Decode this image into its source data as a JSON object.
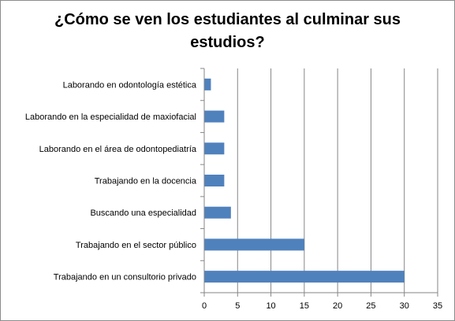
{
  "chart_data": {
    "type": "bar",
    "orientation": "horizontal",
    "title": "¿Cómo se ven los estudiantes al culminar sus estudios?",
    "categories": [
      "Laborando en odontología estética",
      "Laborando en la especialidad de maxiofacial",
      "Laborando en el área de odontopediatría",
      "Trabajando en la docencia",
      "Buscando una especialidad",
      "Trabajando en el sector público",
      "Trabajando en un consultorio privado"
    ],
    "values": [
      1,
      3,
      3,
      3,
      4,
      15,
      30
    ],
    "xlim": [
      0,
      35
    ],
    "xticks": [
      0,
      5,
      10,
      15,
      20,
      25,
      30,
      35
    ],
    "grid": "vertical",
    "legend": "none",
    "bar_color": "#4f81bd"
  }
}
